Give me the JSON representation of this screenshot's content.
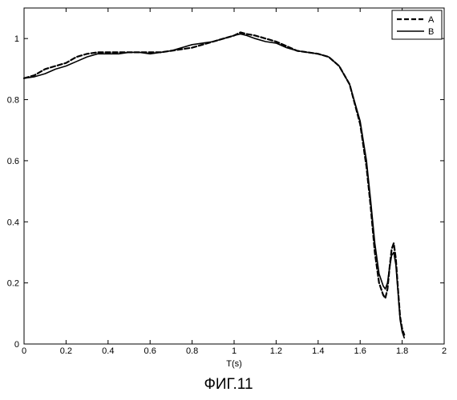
{
  "chart_data": {
    "type": "line",
    "title": "",
    "xlabel": "T(s)",
    "ylabel": "",
    "xlim": [
      0,
      2
    ],
    "ylim": [
      0,
      1.1
    ],
    "x_ticks": [
      0,
      0.2,
      0.4,
      0.6,
      0.8,
      1,
      1.2,
      1.4,
      1.6,
      1.8,
      2
    ],
    "x_tick_labels": [
      "0",
      "0.2",
      "0.4",
      "0.6",
      "0.8",
      "1",
      "1.2",
      "1.4",
      "1.6",
      "1.8",
      "2"
    ],
    "y_ticks": [
      0,
      0.2,
      0.4,
      0.6,
      0.8,
      1
    ],
    "y_tick_labels": [
      "0",
      "0.2",
      "0.4",
      "0.6",
      "0.8",
      "1"
    ],
    "grid": false,
    "legend_position": "top-right",
    "series": [
      {
        "name": "A",
        "style": "dashed",
        "color": "#000000",
        "x": [
          0,
          0.05,
          0.1,
          0.15,
          0.2,
          0.25,
          0.3,
          0.35,
          0.4,
          0.45,
          0.5,
          0.55,
          0.6,
          0.65,
          0.7,
          0.75,
          0.8,
          0.85,
          0.9,
          0.95,
          1.0,
          1.03,
          1.06,
          1.1,
          1.15,
          1.2,
          1.25,
          1.3,
          1.35,
          1.4,
          1.45,
          1.5,
          1.55,
          1.6,
          1.63,
          1.65,
          1.67,
          1.69,
          1.71,
          1.72,
          1.73,
          1.74,
          1.75,
          1.76,
          1.77,
          1.78,
          1.79,
          1.8,
          1.81
        ],
        "y": [
          0.87,
          0.88,
          0.9,
          0.91,
          0.92,
          0.94,
          0.95,
          0.955,
          0.955,
          0.955,
          0.955,
          0.955,
          0.955,
          0.955,
          0.96,
          0.965,
          0.97,
          0.98,
          0.99,
          1.0,
          1.01,
          1.02,
          1.015,
          1.01,
          1.0,
          0.99,
          0.975,
          0.96,
          0.955,
          0.95,
          0.94,
          0.91,
          0.85,
          0.72,
          0.58,
          0.45,
          0.3,
          0.2,
          0.16,
          0.15,
          0.18,
          0.25,
          0.31,
          0.33,
          0.28,
          0.18,
          0.09,
          0.05,
          0.03
        ]
      },
      {
        "name": "B",
        "style": "solid",
        "color": "#000000",
        "x": [
          0,
          0.05,
          0.1,
          0.15,
          0.2,
          0.25,
          0.3,
          0.35,
          0.4,
          0.45,
          0.5,
          0.55,
          0.6,
          0.65,
          0.7,
          0.75,
          0.8,
          0.85,
          0.9,
          0.95,
          1.0,
          1.03,
          1.06,
          1.1,
          1.15,
          1.2,
          1.25,
          1.3,
          1.35,
          1.4,
          1.45,
          1.5,
          1.55,
          1.6,
          1.63,
          1.65,
          1.67,
          1.69,
          1.71,
          1.72,
          1.73,
          1.74,
          1.75,
          1.76,
          1.77,
          1.78,
          1.79,
          1.8,
          1.81
        ],
        "y": [
          0.87,
          0.875,
          0.885,
          0.9,
          0.91,
          0.925,
          0.94,
          0.95,
          0.95,
          0.95,
          0.955,
          0.955,
          0.95,
          0.955,
          0.96,
          0.97,
          0.98,
          0.985,
          0.99,
          1.0,
          1.01,
          1.015,
          1.01,
          1.0,
          0.99,
          0.985,
          0.97,
          0.96,
          0.955,
          0.95,
          0.94,
          0.91,
          0.85,
          0.73,
          0.6,
          0.47,
          0.33,
          0.23,
          0.19,
          0.18,
          0.2,
          0.25,
          0.29,
          0.3,
          0.26,
          0.17,
          0.08,
          0.04,
          0.02
        ]
      }
    ]
  },
  "caption": "ФИГ.11"
}
